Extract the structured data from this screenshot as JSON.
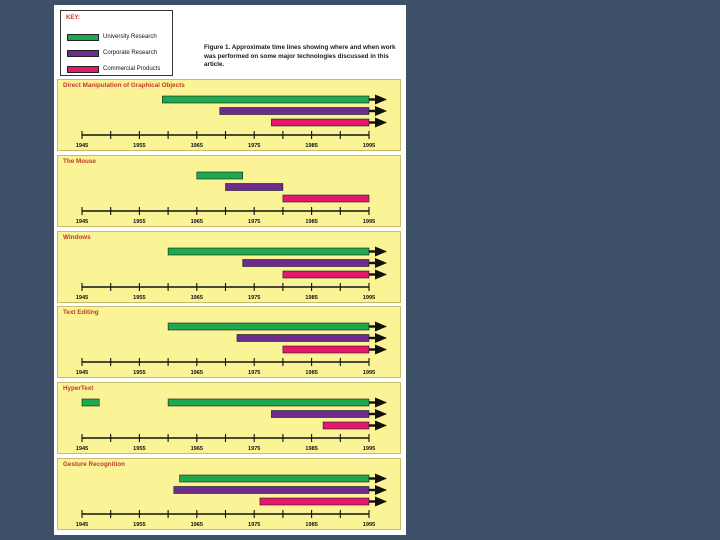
{
  "key": {
    "title": "KEY:",
    "items": [
      {
        "label": "University Research",
        "color": "#1fa94f"
      },
      {
        "label": "Corporate Research",
        "color": "#6d2a8f"
      },
      {
        "label": "Commercial Products",
        "color": "#e6186d"
      }
    ]
  },
  "caption": "Figure 1. Approximate time lines showing where and when work was performed on some major technologies discussed in this article.",
  "axis": {
    "ticks": [
      "1945",
      "1955",
      "1965",
      "1975",
      "1985",
      "1995"
    ]
  },
  "chart_data": {
    "type": "timeline",
    "xlim": [
      1945,
      1995
    ],
    "series_names": [
      "University Research",
      "Corporate Research",
      "Commercial Products"
    ],
    "panels": [
      {
        "title": "Direct Manipulation of Graphical Objects",
        "bars": [
          {
            "series": "University Research",
            "segments": [
              [
                1959,
                1995
              ]
            ],
            "arrow": true
          },
          {
            "series": "Corporate Research",
            "segments": [
              [
                1969,
                1995
              ]
            ],
            "arrow": true
          },
          {
            "series": "Commercial Products",
            "segments": [
              [
                1978,
                1995
              ]
            ],
            "arrow": true
          }
        ]
      },
      {
        "title": "The Mouse",
        "bars": [
          {
            "series": "University Research",
            "segments": [
              [
                1965,
                1973
              ]
            ],
            "arrow": false
          },
          {
            "series": "Corporate Research",
            "segments": [
              [
                1970,
                1980
              ]
            ],
            "arrow": false
          },
          {
            "series": "Commercial Products",
            "segments": [
              [
                1980,
                1995
              ]
            ],
            "arrow": false
          }
        ]
      },
      {
        "title": "Windows",
        "bars": [
          {
            "series": "University Research",
            "segments": [
              [
                1960,
                1995
              ]
            ],
            "arrow": true
          },
          {
            "series": "Corporate Research",
            "segments": [
              [
                1973,
                1995
              ]
            ],
            "arrow": true
          },
          {
            "series": "Commercial Products",
            "segments": [
              [
                1980,
                1995
              ]
            ],
            "arrow": true
          }
        ]
      },
      {
        "title": "Text Editing",
        "bars": [
          {
            "series": "University Research",
            "segments": [
              [
                1960,
                1995
              ]
            ],
            "arrow": true
          },
          {
            "series": "Corporate Research",
            "segments": [
              [
                1972,
                1995
              ]
            ],
            "arrow": true
          },
          {
            "series": "Commercial Products",
            "segments": [
              [
                1980,
                1995
              ]
            ],
            "arrow": true
          }
        ]
      },
      {
        "title": "HyperText",
        "bars": [
          {
            "series": "University Research",
            "segments": [
              [
                1945,
                1948
              ],
              [
                1960,
                1995
              ]
            ],
            "arrow": true
          },
          {
            "series": "Corporate Research",
            "segments": [
              [
                1978,
                1995
              ]
            ],
            "arrow": true
          },
          {
            "series": "Commercial Products",
            "segments": [
              [
                1987,
                1995
              ]
            ],
            "arrow": true
          }
        ]
      },
      {
        "title": "Gesture Recognition",
        "bars": [
          {
            "series": "University Research",
            "segments": [
              [
                1962,
                1995
              ]
            ],
            "arrow": true
          },
          {
            "series": "Corporate Research",
            "segments": [
              [
                1961,
                1995
              ]
            ],
            "arrow": true
          },
          {
            "series": "Commercial Products",
            "segments": [
              [
                1976,
                1995
              ]
            ],
            "arrow": true
          }
        ]
      }
    ]
  }
}
